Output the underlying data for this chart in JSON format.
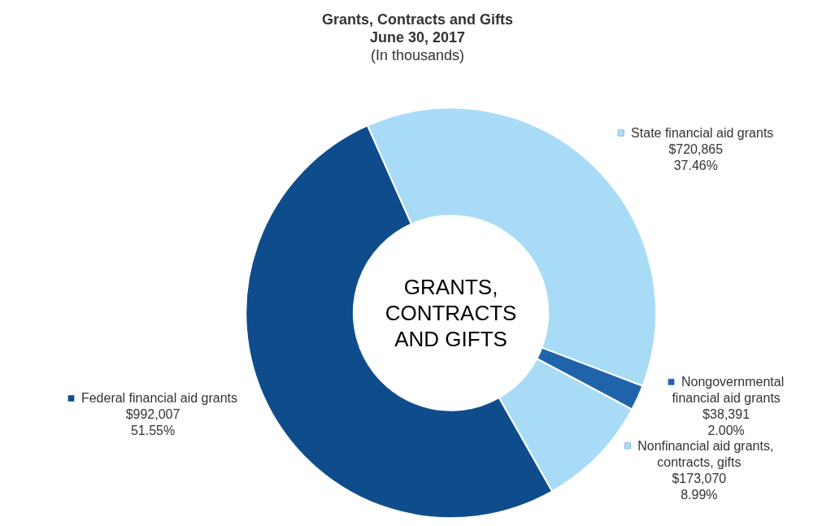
{
  "chart_data": {
    "type": "donut",
    "title": "Grants, Contracts and Gifts\nJune 30, 2017",
    "subtitle": "(In thousands)",
    "categories": [
      "State financial aid grants",
      "Nongovernmental\nfinancial aid grants",
      "Nonfinancial aid grants,\ncontracts, gifts",
      "Federal financial aid grants"
    ],
    "values": [
      720865,
      38391,
      173070,
      992007
    ],
    "value_labels": [
      "$720,865\n37.46%",
      "$38,391\n2.00%",
      "$173,070\n8.99%",
      "$992,007\n51.55%"
    ],
    "colors": [
      "#a8dcf6",
      "#1f64ab",
      "#a8dcf6",
      "#0f4c8c"
    ],
    "annotations": [
      "GRANTS,\nCONTRACTS\nAND GIFTS"
    ],
    "legend": "top left"
  }
}
